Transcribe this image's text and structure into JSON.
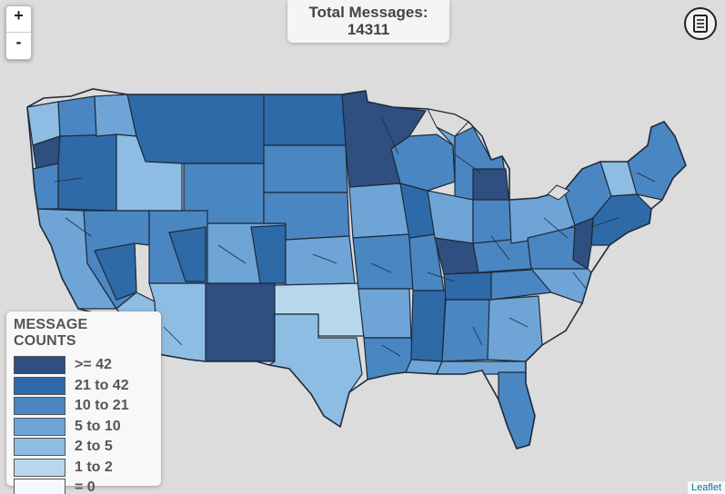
{
  "total": {
    "label": "Total Messages:",
    "value": "14311"
  },
  "zoom": {
    "in_label": "+",
    "out_label": "-"
  },
  "legend": {
    "title": "MESSAGE COUNTS",
    "items": [
      {
        "label": ">= 42",
        "color": "#2e4f80"
      },
      {
        "label": "21 to 42",
        "color": "#2f6aa8"
      },
      {
        "label": "10 to 21",
        "color": "#4a86c2"
      },
      {
        "label": "5 to 10",
        "color": "#6ea5d6"
      },
      {
        "label": "2 to 5",
        "color": "#8dbde2"
      },
      {
        "label": "1 to 2",
        "color": "#b7d8ec"
      },
      {
        "label": "= 0",
        "color": "#f4f8fc"
      }
    ]
  },
  "attribution": "Leaflet",
  "icons": {
    "print": "print-icon"
  }
}
